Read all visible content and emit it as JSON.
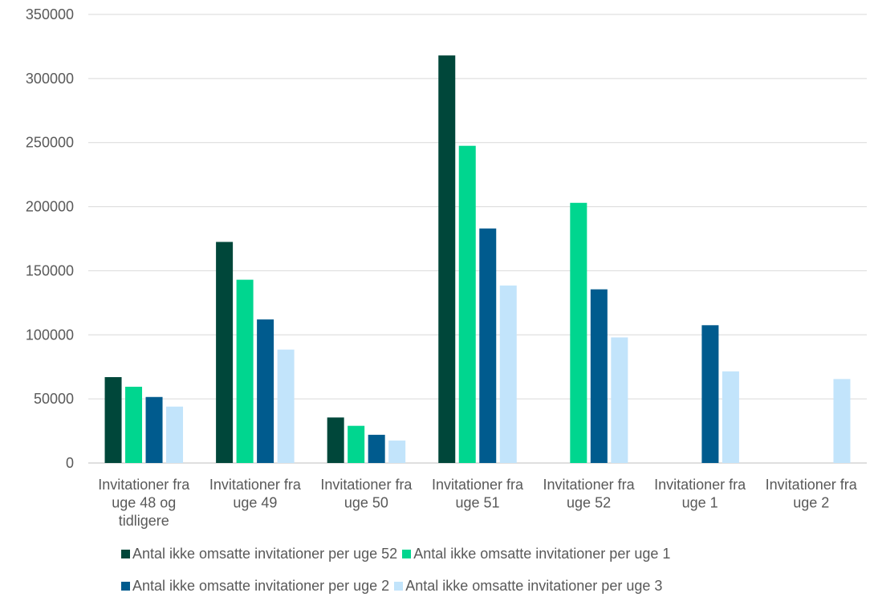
{
  "chart_data": {
    "type": "bar",
    "categories": [
      [
        "Invitationer fra",
        "uge 48 og",
        "tidligere"
      ],
      [
        "Invitationer fra",
        "uge 49"
      ],
      [
        "Invitationer fra",
        "uge 50"
      ],
      [
        "Invitationer fra",
        "uge 51"
      ],
      [
        "Invitationer fra",
        "uge 52"
      ],
      [
        "Invitationer fra",
        "uge 1"
      ],
      [
        "Invitationer fra",
        "uge 2"
      ]
    ],
    "series": [
      {
        "name": "Antal ikke omsatte invitationer per uge 52",
        "color": "#00473a",
        "values": [
          67000,
          172500,
          35500,
          318000,
          null,
          null,
          null
        ]
      },
      {
        "name": "Antal ikke omsatte invitationer per uge 1",
        "color": "#00d68f",
        "values": [
          59500,
          143000,
          29000,
          247500,
          203000,
          null,
          null
        ]
      },
      {
        "name": "Antal ikke omsatte invitationer per uge 2",
        "color": "#005b8e",
        "values": [
          51500,
          112000,
          22000,
          183000,
          135500,
          107500,
          null
        ]
      },
      {
        "name": "Antal ikke omsatte invitationer per uge 3",
        "color": "#c2e4fb",
        "values": [
          44000,
          88500,
          17500,
          138500,
          98000,
          71500,
          65500
        ]
      }
    ],
    "ylim": [
      0,
      350000
    ],
    "yticks": [
      0,
      50000,
      100000,
      150000,
      200000,
      250000,
      300000,
      350000
    ],
    "grid": true,
    "legend_position": "bottom",
    "legend_rows": [
      [
        0,
        1
      ],
      [
        2,
        3
      ]
    ]
  }
}
